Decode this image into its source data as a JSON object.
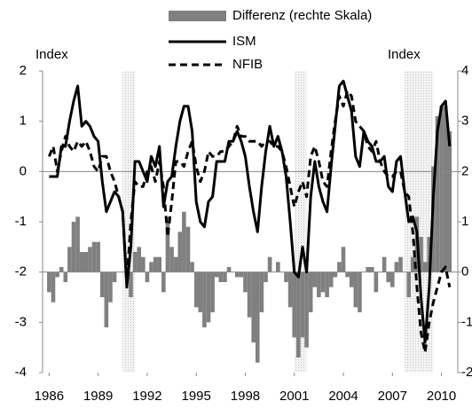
{
  "chart_data": {
    "type": "bar-line",
    "x": [
      1986,
      1986.25,
      1986.5,
      1986.75,
      1987,
      1987.25,
      1987.5,
      1987.75,
      1988,
      1988.25,
      1988.5,
      1988.75,
      1989,
      1989.25,
      1989.5,
      1989.75,
      1990,
      1990.25,
      1990.5,
      1990.75,
      1991,
      1991.25,
      1991.5,
      1991.75,
      1992,
      1992.25,
      1992.5,
      1992.75,
      1993,
      1993.25,
      1993.5,
      1993.75,
      1994,
      1994.25,
      1994.5,
      1994.75,
      1995,
      1995.25,
      1995.5,
      1995.75,
      1996,
      1996.25,
      1996.5,
      1996.75,
      1997,
      1997.25,
      1997.5,
      1997.75,
      1998,
      1998.25,
      1998.5,
      1998.75,
      1999,
      1999.25,
      1999.5,
      1999.75,
      2000,
      2000.25,
      2000.5,
      2000.75,
      2001,
      2001.25,
      2001.5,
      2001.75,
      2002,
      2002.25,
      2002.5,
      2002.75,
      2003,
      2003.25,
      2003.5,
      2003.75,
      2004,
      2004.25,
      2004.5,
      2004.75,
      2005,
      2005.25,
      2005.5,
      2005.75,
      2006,
      2006.25,
      2006.5,
      2006.75,
      2007,
      2007.25,
      2007.5,
      2007.75,
      2008,
      2008.25,
      2008.5,
      2008.75,
      2009,
      2009.25,
      2009.5,
      2009.75,
      2010,
      2010.25,
      2010.5
    ],
    "series": [
      {
        "name": "Differenz (rechte Skala)",
        "color": "#808080",
        "axis": "y2",
        "kind": "bar",
        "values": [
          -0.4,
          -0.6,
          -0.1,
          0.1,
          -0.2,
          0.5,
          1.0,
          1.1,
          0.4,
          0.4,
          0.5,
          0.6,
          0.6,
          -0.5,
          -1.1,
          -0.6,
          -0.2,
          0.0,
          0.0,
          -0.1,
          -0.5,
          0.4,
          0.5,
          0.3,
          -0.2,
          0.2,
          0.3,
          0.3,
          -0.4,
          1.1,
          0.5,
          0.3,
          0.8,
          1.2,
          0.9,
          0.2,
          -0.7,
          -0.8,
          -1.1,
          -1.0,
          -0.8,
          -0.1,
          -0.2,
          -0.2,
          0.1,
          0.0,
          -0.1,
          -0.1,
          -0.4,
          -0.9,
          -1.4,
          -1.8,
          -0.8,
          -0.2,
          0.3,
          0.0,
          0.2,
          0.0,
          -0.2,
          -0.7,
          -1.3,
          -1.7,
          -1.3,
          -1.5,
          -0.8,
          -0.3,
          -0.5,
          -0.4,
          -0.5,
          -0.3,
          -0.1,
          0.2,
          0.5,
          -0.1,
          -0.3,
          -0.7,
          -0.8,
          0.0,
          0.1,
          0.1,
          -0.4,
          0.0,
          0.3,
          -0.2,
          -0.3,
          0.2,
          0.3,
          0.0,
          -0.5,
          0.3,
          1.1,
          0.7,
          0.2,
          0.7,
          2.1,
          3.1,
          3.3,
          3.3,
          2.8
        ]
      },
      {
        "name": "ISM",
        "color": "#000000",
        "kind": "line",
        "values": [
          -0.1,
          -0.1,
          -0.1,
          0.5,
          0.5,
          1.0,
          1.4,
          1.7,
          0.9,
          1.0,
          0.9,
          0.7,
          0.6,
          -0.2,
          -0.8,
          -0.6,
          -0.4,
          -0.5,
          -0.8,
          -2.3,
          -1.5,
          0.2,
          0.2,
          0.0,
          -0.2,
          0.3,
          0.1,
          0.5,
          -0.7,
          -0.2,
          -0.1,
          0.5,
          1.0,
          1.3,
          1.3,
          0.8,
          -0.6,
          -1.0,
          -1.1,
          -0.6,
          -0.5,
          0.2,
          0.2,
          0.2,
          0.6,
          0.6,
          0.8,
          0.6,
          0.3,
          -0.3,
          -0.8,
          -1.2,
          -0.3,
          0.4,
          0.9,
          0.5,
          0.7,
          0.4,
          -0.1,
          -1.0,
          -2.0,
          -2.1,
          -1.5,
          -2.0,
          -0.5,
          0.2,
          -0.3,
          -0.6,
          -0.8,
          0.1,
          0.9,
          1.7,
          1.8,
          1.5,
          1.2,
          0.3,
          0.1,
          0.8,
          0.6,
          0.5,
          0.2,
          0.2,
          0.3,
          -0.3,
          -0.4,
          0.2,
          0.3,
          -0.4,
          -1.0,
          -0.9,
          -1.2,
          -2.5,
          -3.4,
          -2.3,
          -0.5,
          0.8,
          1.3,
          1.4,
          0.5
        ]
      },
      {
        "name": "NFIB",
        "color": "#000000",
        "kind": "dashed",
        "values": [
          0.3,
          0.5,
          0.0,
          0.4,
          0.7,
          0.5,
          0.4,
          0.6,
          0.5,
          0.6,
          0.4,
          0.1,
          0.0,
          0.3,
          0.3,
          0.0,
          -0.2,
          -0.5,
          -0.8,
          -2.2,
          -1.0,
          -0.2,
          -0.3,
          -0.3,
          0.0,
          0.1,
          -0.2,
          0.2,
          -0.3,
          -1.3,
          -0.6,
          0.2,
          0.2,
          0.1,
          0.4,
          0.6,
          0.1,
          -0.2,
          0.0,
          0.4,
          0.3,
          0.3,
          0.4,
          0.4,
          0.5,
          0.6,
          0.9,
          0.7,
          0.7,
          0.6,
          0.6,
          0.6,
          0.5,
          0.6,
          0.6,
          0.5,
          0.5,
          0.4,
          0.1,
          -0.3,
          -0.7,
          -0.4,
          -0.2,
          -0.5,
          0.3,
          0.5,
          0.2,
          -0.2,
          -0.3,
          0.4,
          1.0,
          1.5,
          1.3,
          1.6,
          1.5,
          1.0,
          0.9,
          0.8,
          0.5,
          0.4,
          0.6,
          0.2,
          0.0,
          -0.1,
          -0.1,
          0.0,
          0.0,
          -0.4,
          -0.5,
          -1.2,
          -2.3,
          -3.2,
          -3.6,
          -3.0,
          -2.6,
          -2.3,
          -2.0,
          -1.9,
          -2.3
        ]
      }
    ],
    "recessions": [
      [
        1990.5,
        1991.25
      ],
      [
        2001,
        2001.75
      ],
      [
        2007.75,
        2009.5
      ]
    ],
    "ylabel": "Index",
    "y2label": "Index",
    "xlim": [
      1985.6,
      2011
    ],
    "xticks": [
      1986,
      1989,
      1992,
      1995,
      1998,
      2001,
      2004,
      2007,
      2010
    ],
    "ylim": [
      -4,
      2
    ],
    "yticks": [
      -4,
      -3,
      -2,
      -1,
      0,
      1,
      2
    ],
    "y2lim": [
      -2,
      4
    ],
    "y2ticks": [
      -2,
      -1,
      0,
      1,
      2,
      3,
      4
    ]
  }
}
